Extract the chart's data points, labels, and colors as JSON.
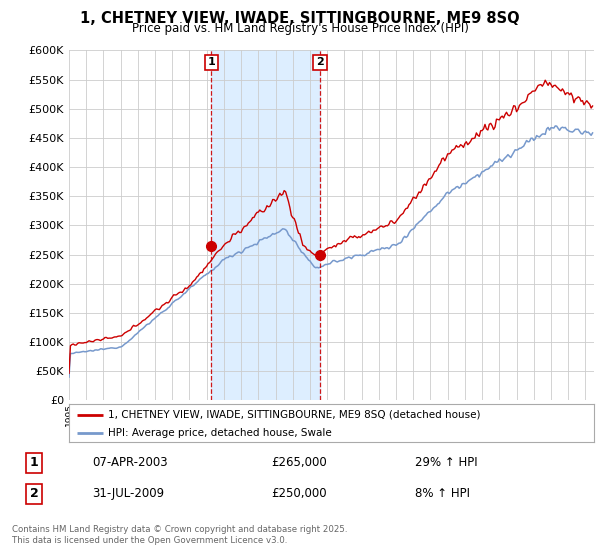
{
  "title": "1, CHETNEY VIEW, IWADE, SITTINGBOURNE, ME9 8SQ",
  "subtitle": "Price paid vs. HM Land Registry's House Price Index (HPI)",
  "legend_line1": "1, CHETNEY VIEW, IWADE, SITTINGBOURNE, ME9 8SQ (detached house)",
  "legend_line2": "HPI: Average price, detached house, Swale",
  "transaction1_date": "07-APR-2003",
  "transaction1_price": "£265,000",
  "transaction1_hpi": "29% ↑ HPI",
  "transaction2_date": "31-JUL-2009",
  "transaction2_price": "£250,000",
  "transaction2_hpi": "8% ↑ HPI",
  "footer": "Contains HM Land Registry data © Crown copyright and database right 2025.\nThis data is licensed under the Open Government Licence v3.0.",
  "red_color": "#cc0000",
  "blue_color": "#7799cc",
  "vline_color": "#cc0000",
  "shade_color": "#ddeeff",
  "grid_color": "#cccccc",
  "chart_bg": "#ffffff",
  "ylim": [
    0,
    600000
  ],
  "ytick_step": 50000,
  "year_start": 1995,
  "year_end": 2025,
  "t1_year": 2003.27,
  "t2_year": 2009.58,
  "t1_price": 265000,
  "t2_price": 250000
}
